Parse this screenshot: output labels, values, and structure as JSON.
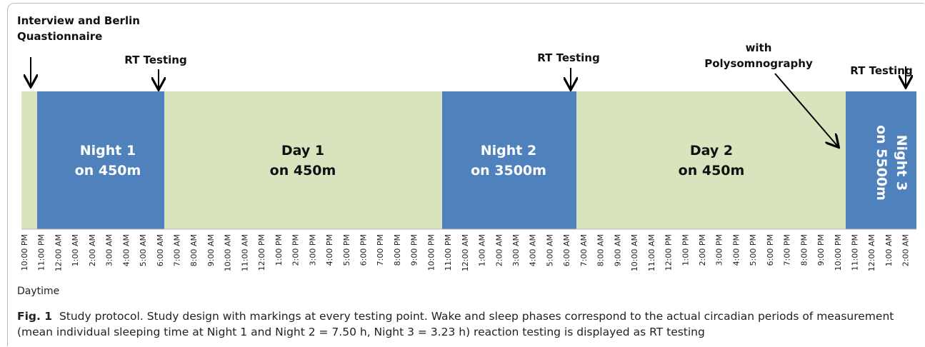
{
  "annotations": {
    "interview": [
      "Interview and Berlin",
      "Quastionnaire"
    ],
    "rt1": "RT Testing",
    "rt2": "RT Testing",
    "poly": [
      "with",
      "Polysomnography"
    ],
    "rt3": "RT Testing"
  },
  "blocks": [
    {
      "lines": [
        "Night 1",
        "on 450m"
      ]
    },
    {
      "lines": [
        "Day 1",
        "on 450m"
      ]
    },
    {
      "lines": [
        "Night 2",
        "on 3500m"
      ]
    },
    {
      "lines": [
        "Day 2",
        "on 450m"
      ]
    },
    {
      "lines": [
        "Night 3",
        "on 5500m"
      ]
    }
  ],
  "time_labels": [
    "10:00 PM",
    "11:00 PM",
    "12:00 AM",
    "1:00 AM",
    "2:00 AM",
    "3:00 AM",
    "4:00 AM",
    "5:00 AM",
    "6:00 AM",
    "7:00 AM",
    "8:00 AM",
    "9:00 AM",
    "10:00 AM",
    "11:00 AM",
    "12:00 PM",
    "1:00 PM",
    "2:00 PM",
    "3:00 PM",
    "4:00 PM",
    "5:00 PM",
    "6:00 PM",
    "7:00 PM",
    "8:00 PM",
    "9:00 PM",
    "10:00 PM",
    "11:00 PM",
    "12:00 AM",
    "1:00 AM",
    "2:00 AM",
    "3:00 AM",
    "4:00 AM",
    "5:00 AM",
    "6:00 AM",
    "7:00 AM",
    "8:00 AM",
    "9:00 AM",
    "10:00 AM",
    "11:00 AM",
    "12:00 PM",
    "1:00 PM",
    "2:00 PM",
    "3:00 PM",
    "4:00 PM",
    "5:00 PM",
    "6:00 PM",
    "7:00 PM",
    "8:00 PM",
    "9:00 PM",
    "10:00 PM",
    "11:00 PM",
    "12:00 AM",
    "1:00 AM",
    "2:00 AM"
  ],
  "axis_label": "Daytime",
  "caption": {
    "label": "Fig. 1",
    "text": "Study protocol. Study design with markings at every testing point. Wake and sleep phases correspond to the actual circadian periods of measurement (mean individual sleeping time at Night 1 and Night 2 = 7.50 h, Night 3 = 3.23 h) reaction testing is displayed as RT testing"
  }
}
